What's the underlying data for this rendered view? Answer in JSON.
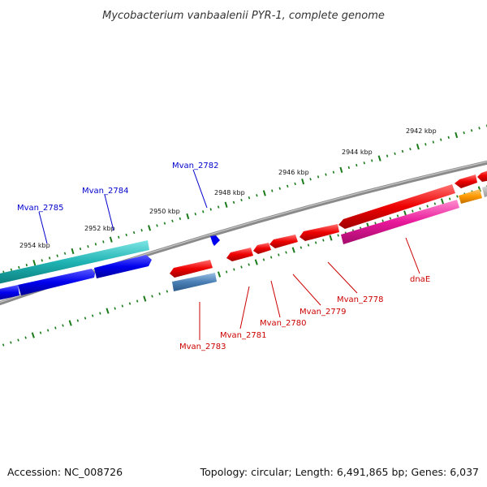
{
  "title": "Mycobacterium vanbaalenii PYR-1, complete genome",
  "footer": {
    "accession": "Accession: NC_008726",
    "summary": "Topology: circular; Length: 6,491,865 bp; Genes: 6,037"
  },
  "colors": {
    "forward_label": "#0000cc",
    "reverse_label": "#cc0000",
    "backbone": "#888888",
    "ticks": "#1a7a1a"
  },
  "scale_ticks": [
    "2942 kbp",
    "2944 kbp",
    "2946 kbp",
    "2948 kbp",
    "2950 kbp",
    "2952 kbp",
    "2954 kbp"
  ],
  "forward_genes": [
    "Mvan_2782",
    "Mvan_2784",
    "Mvan_2785"
  ],
  "reverse_genes": [
    "dnaE",
    "Mvan_2778",
    "Mvan_2779",
    "Mvan_2780",
    "Mvan_2781",
    "Mvan_2783"
  ]
}
